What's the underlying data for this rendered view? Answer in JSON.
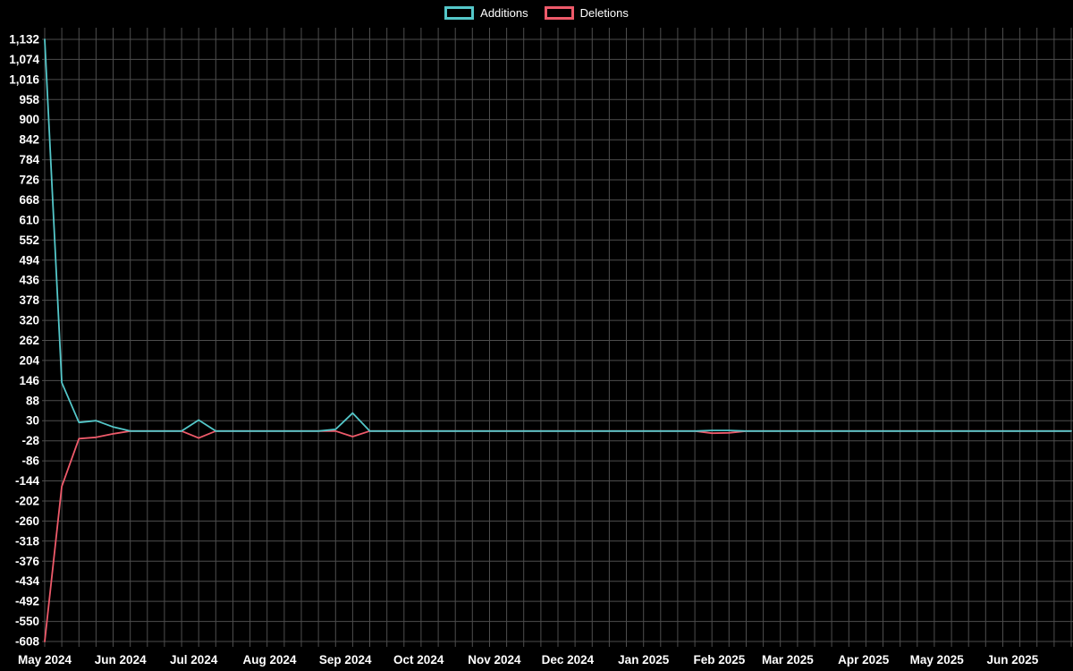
{
  "legend": {
    "items": [
      {
        "label": "Additions",
        "color": "#54c7c9"
      },
      {
        "label": "Deletions",
        "color": "#ee5a6a"
      }
    ]
  },
  "axes": {
    "y_ticks": [
      {
        "label": "1,132",
        "value": 1132
      },
      {
        "label": "1,074",
        "value": 1074
      },
      {
        "label": "1,016",
        "value": 1016
      },
      {
        "label": "958",
        "value": 958
      },
      {
        "label": "900",
        "value": 900
      },
      {
        "label": "842",
        "value": 842
      },
      {
        "label": "784",
        "value": 784
      },
      {
        "label": "726",
        "value": 726
      },
      {
        "label": "668",
        "value": 668
      },
      {
        "label": "610",
        "value": 610
      },
      {
        "label": "552",
        "value": 552
      },
      {
        "label": "494",
        "value": 494
      },
      {
        "label": "436",
        "value": 436
      },
      {
        "label": "378",
        "value": 378
      },
      {
        "label": "320",
        "value": 320
      },
      {
        "label": "262",
        "value": 262
      },
      {
        "label": "204",
        "value": 204
      },
      {
        "label": "146",
        "value": 146
      },
      {
        "label": "88",
        "value": 88
      },
      {
        "label": "30",
        "value": 30
      },
      {
        "label": "-28",
        "value": -28
      },
      {
        "label": "-86",
        "value": -86
      },
      {
        "label": "-144",
        "value": -144
      },
      {
        "label": "-202",
        "value": -202
      },
      {
        "label": "-260",
        "value": -260
      },
      {
        "label": "-318",
        "value": -318
      },
      {
        "label": "-376",
        "value": -376
      },
      {
        "label": "-434",
        "value": -434
      },
      {
        "label": "-492",
        "value": -492
      },
      {
        "label": "-550",
        "value": -550
      },
      {
        "label": "-608",
        "value": -608
      }
    ],
    "x_ticks": [
      {
        "label": "May 2024",
        "day": 0
      },
      {
        "label": "Jun 2024",
        "day": 31
      },
      {
        "label": "Jul 2024",
        "day": 61
      },
      {
        "label": "Aug 2024",
        "day": 92
      },
      {
        "label": "Sep 2024",
        "day": 123
      },
      {
        "label": "Oct 2024",
        "day": 153
      },
      {
        "label": "Nov 2024",
        "day": 184
      },
      {
        "label": "Dec 2024",
        "day": 214
      },
      {
        "label": "Jan 2025",
        "day": 245
      },
      {
        "label": "Feb 2025",
        "day": 276
      },
      {
        "label": "Mar 2025",
        "day": 304
      },
      {
        "label": "Apr 2025",
        "day": 335
      },
      {
        "label": "May 2025",
        "day": 365
      },
      {
        "label": "Jun 2025",
        "day": 396
      }
    ]
  },
  "chart_data": {
    "type": "line",
    "title": "",
    "x_unit": "days_from_start_weekly",
    "x_start_date": "2024-05-01",
    "x": [
      0,
      7,
      14,
      21,
      28,
      35,
      42,
      49,
      56,
      63,
      70,
      77,
      84,
      91,
      98,
      105,
      112,
      119,
      126,
      133,
      140,
      147,
      154,
      161,
      168,
      175,
      182,
      189,
      196,
      203,
      210,
      217,
      224,
      231,
      238,
      245,
      252,
      259,
      266,
      273,
      280,
      287,
      294,
      301,
      308,
      315,
      322,
      329,
      336,
      343,
      350,
      357,
      364,
      371,
      378,
      385,
      392,
      399,
      406,
      413,
      420
    ],
    "series": [
      {
        "name": "Additions",
        "color": "#54c7c9",
        "values": [
          1132,
          140,
          25,
          30,
          12,
          0,
          0,
          0,
          0,
          32,
          0,
          0,
          0,
          0,
          0,
          0,
          0,
          5,
          52,
          0,
          0,
          0,
          0,
          0,
          0,
          0,
          0,
          0,
          0,
          0,
          0,
          0,
          0,
          0,
          0,
          0,
          0,
          0,
          0,
          2,
          2,
          0,
          0,
          0,
          0,
          0,
          0,
          0,
          0,
          0,
          0,
          0,
          0,
          0,
          0,
          0,
          0,
          0,
          0,
          0,
          0
        ]
      },
      {
        "name": "Deletions",
        "color": "#ee5a6a",
        "values": [
          -608,
          -160,
          -22,
          -18,
          -8,
          0,
          0,
          0,
          0,
          -20,
          0,
          0,
          0,
          0,
          0,
          0,
          0,
          0,
          -16,
          0,
          0,
          0,
          0,
          0,
          0,
          0,
          0,
          0,
          0,
          0,
          0,
          0,
          0,
          0,
          0,
          0,
          0,
          0,
          0,
          -6,
          -5,
          0,
          0,
          0,
          0,
          0,
          0,
          0,
          0,
          0,
          0,
          0,
          0,
          0,
          0,
          0,
          0,
          0,
          0,
          0,
          0
        ]
      }
    ],
    "ylim": [
      -608,
      1132
    ],
    "y_tick_step": 58,
    "grid": true,
    "legend_position": "top-center",
    "background": "#000000",
    "text_color": "#ffffff",
    "grid_color": "#4d4d4d"
  }
}
